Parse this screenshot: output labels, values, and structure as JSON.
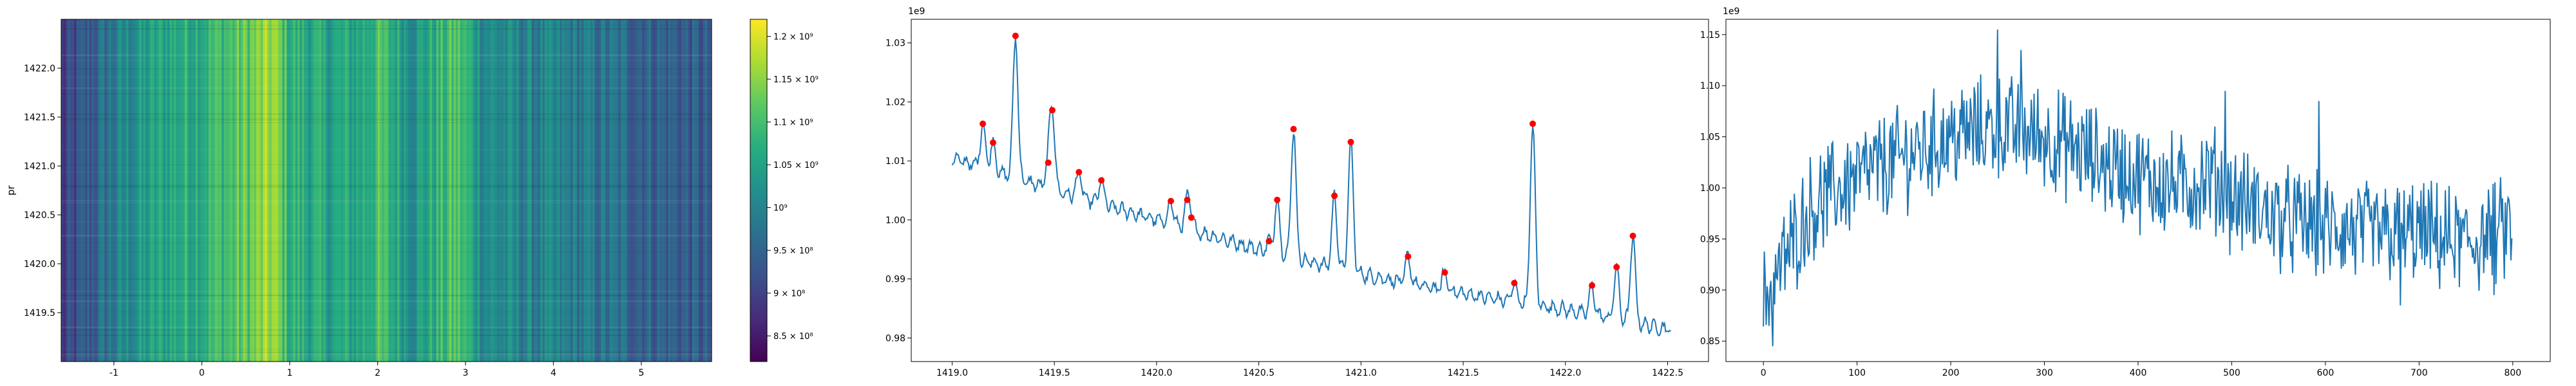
{
  "chart_data": [
    {
      "type": "heatmap",
      "ylabel": "pr",
      "xlim": [
        -1.6,
        5.8
      ],
      "ylim": [
        1419.0,
        1422.5
      ],
      "xticks": [
        "-1",
        "0",
        "1",
        "2",
        "3",
        "4",
        "5"
      ],
      "yticks": [
        "1419.5",
        "1420.0",
        "1420.5",
        "1421.0",
        "1421.5",
        "1422.0"
      ],
      "colorbar": {
        "cmap": "viridis",
        "range": [
          820000000,
          1220000000
        ],
        "ticks": [
          "8.5 × 10⁸",
          "9 × 10⁸",
          "9.5 × 10⁸",
          "10⁹",
          "1.05 × 10⁹",
          "1.1 × 10⁹",
          "1.15 × 10⁹",
          "1.2 × 10⁹"
        ]
      },
      "column_profile": {
        "x_range": [
          -1.6,
          5.8
        ],
        "profile_points": [
          [
            -1.6,
            0.88
          ],
          [
            -1.2,
            0.95
          ],
          [
            -0.8,
            1.02
          ],
          [
            -0.4,
            1.06
          ],
          [
            0.0,
            1.08
          ],
          [
            0.3,
            1.1
          ],
          [
            0.6,
            1.13
          ],
          [
            0.8,
            1.16
          ],
          [
            1.0,
            1.08
          ],
          [
            1.4,
            1.05
          ],
          [
            1.8,
            1.06
          ],
          [
            2.0,
            1.1
          ],
          [
            2.4,
            1.03
          ],
          [
            2.9,
            1.11
          ],
          [
            3.2,
            1.02
          ],
          [
            3.6,
            1.0
          ],
          [
            4.0,
            0.99
          ],
          [
            4.4,
            0.98
          ],
          [
            4.8,
            0.96
          ],
          [
            5.2,
            0.95
          ],
          [
            5.8,
            0.93
          ]
        ]
      },
      "row_banding": "faint horizontal lines at random rows"
    },
    {
      "type": "line",
      "offset_label": "1e9",
      "xlim": [
        1418.8,
        1422.7
      ],
      "ylim": [
        0.976,
        1.034
      ],
      "xticks": [
        "1419.0",
        "1419.5",
        "1420.0",
        "1420.5",
        "1421.0",
        "1421.5",
        "1422.0",
        "1422.5"
      ],
      "yticks": [
        "0.98",
        "0.99",
        "1.00",
        "1.01",
        "1.02",
        "1.03"
      ],
      "series_color": "#1f77b4",
      "marker_color": "#ff0000",
      "baseline": [
        [
          1419.0,
          1.0105
        ],
        [
          1419.5,
          1.005
        ],
        [
          1420.0,
          1.0
        ],
        [
          1420.5,
          0.995
        ],
        [
          1421.0,
          0.9908
        ],
        [
          1421.5,
          0.9875
        ],
        [
          1422.0,
          0.9848
        ],
        [
          1422.5,
          0.9815
        ]
      ],
      "peaks": [
        {
          "x": 1419.15,
          "y": 1.0163
        },
        {
          "x": 1419.2,
          "y": 1.0131
        },
        {
          "x": 1419.31,
          "y": 1.0312
        },
        {
          "x": 1419.47,
          "y": 1.0097
        },
        {
          "x": 1419.49,
          "y": 1.0186
        },
        {
          "x": 1419.62,
          "y": 1.0081
        },
        {
          "x": 1419.73,
          "y": 1.0067
        },
        {
          "x": 1420.07,
          "y": 1.0032
        },
        {
          "x": 1420.15,
          "y": 1.0034
        },
        {
          "x": 1420.17,
          "y": 1.0004
        },
        {
          "x": 1420.55,
          "y": 0.9964
        },
        {
          "x": 1420.59,
          "y": 1.0034
        },
        {
          "x": 1420.67,
          "y": 1.0154
        },
        {
          "x": 1420.87,
          "y": 1.0041
        },
        {
          "x": 1420.95,
          "y": 1.0132
        },
        {
          "x": 1421.23,
          "y": 0.9938
        },
        {
          "x": 1421.41,
          "y": 0.9911
        },
        {
          "x": 1421.75,
          "y": 0.9893
        },
        {
          "x": 1421.84,
          "y": 1.0163
        },
        {
          "x": 1422.13,
          "y": 0.9889
        },
        {
          "x": 1422.25,
          "y": 0.992
        },
        {
          "x": 1422.33,
          "y": 0.9973
        }
      ]
    },
    {
      "type": "line",
      "offset_label": "1e9",
      "xlim": [
        -40,
        840
      ],
      "ylim": [
        0.83,
        1.165
      ],
      "xticks": [
        "0",
        "100",
        "200",
        "300",
        "400",
        "500",
        "600",
        "700",
        "800"
      ],
      "yticks": [
        "0.85",
        "0.90",
        "0.95",
        "1.00",
        "1.05",
        "1.10",
        "1.15"
      ],
      "series_color": "#1f77b4",
      "n_points": 800,
      "trend": [
        [
          0,
          0.89
        ],
        [
          50,
          0.98
        ],
        [
          100,
          1.01
        ],
        [
          150,
          1.03
        ],
        [
          200,
          1.05
        ],
        [
          250,
          1.06
        ],
        [
          300,
          1.05
        ],
        [
          350,
          1.03
        ],
        [
          400,
          1.01
        ],
        [
          450,
          1.0
        ],
        [
          480,
          1.01
        ],
        [
          500,
          0.99
        ],
        [
          550,
          0.97
        ],
        [
          600,
          0.96
        ],
        [
          650,
          0.955
        ],
        [
          700,
          0.955
        ],
        [
          750,
          0.945
        ],
        [
          800,
          0.96
        ]
      ],
      "extremes": [
        {
          "x": 10,
          "y": 0.845
        },
        {
          "x": 250,
          "y": 1.155
        },
        {
          "x": 275,
          "y": 1.135
        },
        {
          "x": 493,
          "y": 1.095
        },
        {
          "x": 593,
          "y": 1.085
        },
        {
          "x": 680,
          "y": 0.885
        },
        {
          "x": 780,
          "y": 0.895
        }
      ]
    }
  ]
}
